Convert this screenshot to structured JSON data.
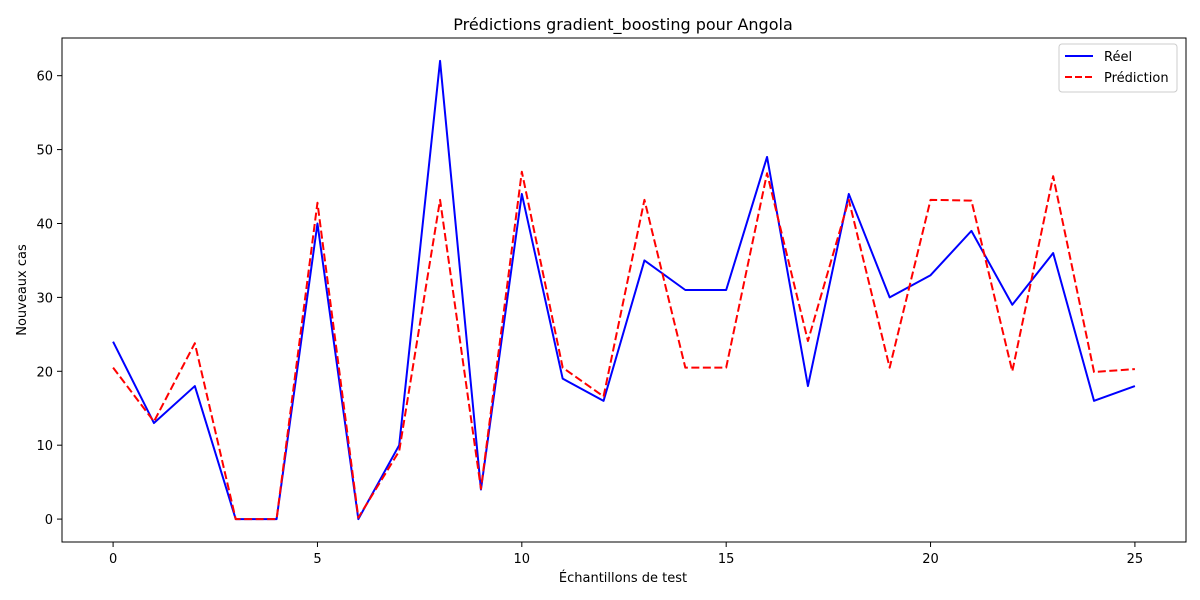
{
  "chart_data": {
    "type": "line",
    "title": "Prédictions gradient_boosting pour Angola",
    "xlabel": "Échantillons de test",
    "ylabel": "Nouveaux cas",
    "xlim": [
      -1.25,
      26.25
    ],
    "ylim": [
      -3.1,
      65.1
    ],
    "xticks": [
      0,
      5,
      10,
      15,
      20,
      25
    ],
    "yticks": [
      0,
      10,
      20,
      30,
      40,
      50,
      60
    ],
    "grid": false,
    "legend_position": "top-right",
    "x": [
      0,
      1,
      2,
      3,
      4,
      5,
      6,
      7,
      8,
      9,
      10,
      11,
      12,
      13,
      14,
      15,
      16,
      17,
      18,
      19,
      20,
      21,
      22,
      23,
      24,
      25
    ],
    "series": [
      {
        "name": "Réel",
        "color": "#0000ff",
        "style": "solid",
        "values": [
          24,
          13,
          18,
          0,
          0,
          40,
          0,
          10,
          62,
          4,
          44,
          19,
          16,
          35,
          31,
          31,
          49,
          18,
          44,
          30,
          33,
          39,
          29,
          36,
          16,
          18
        ]
      },
      {
        "name": "Prédiction",
        "color": "#ff0000",
        "style": "dashed",
        "values": [
          20.5,
          13.2,
          23.8,
          0,
          0,
          42.8,
          0.2,
          9.2,
          43.2,
          4.1,
          47,
          20.5,
          16.6,
          43.2,
          20.5,
          20.5,
          46.8,
          24.1,
          43.2,
          20.5,
          43.2,
          43.1,
          20,
          46.4,
          19.9,
          20.3
        ]
      }
    ]
  }
}
